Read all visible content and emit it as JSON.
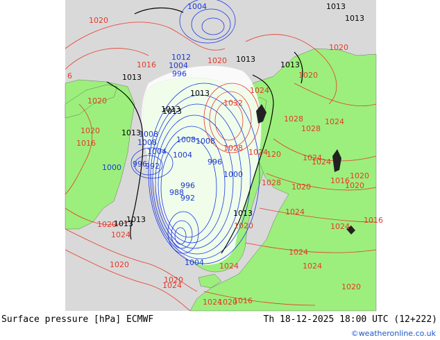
{
  "footer": {
    "title": "Surface pressure [hPa] ECMWF",
    "valid_time": "Th 18-12-2025 18:00 UTC (12+222)",
    "credit": "©weatheronline.co.uk"
  },
  "colors": {
    "ocean": "#d9d9d9",
    "land": "#9cef7c",
    "high_isobar": "#e8382a",
    "low_isobar": "#1838e0",
    "standard_isobar": "#000000"
  },
  "map": {
    "isobar_labels": [
      {
        "text": "1020",
        "color": "red"
      },
      {
        "text": "1004",
        "color": "blue"
      },
      {
        "text": "1013",
        "color": "black"
      },
      {
        "text": "1013",
        "color": "black"
      },
      {
        "text": "1020",
        "color": "red"
      },
      {
        "text": "1016",
        "color": "red"
      },
      {
        "text": "1012",
        "color": "blue"
      },
      {
        "text": "1004",
        "color": "blue"
      },
      {
        "text": "996",
        "color": "blue"
      },
      {
        "text": "1020",
        "color": "red"
      },
      {
        "text": "1013",
        "color": "black"
      },
      {
        "text": "1013",
        "color": "black"
      },
      {
        "text": "1020",
        "color": "red"
      },
      {
        "text": "1013",
        "color": "black"
      },
      {
        "text": "6",
        "color": "red"
      },
      {
        "text": "1013",
        "color": "black"
      },
      {
        "text": "1013",
        "color": "black"
      },
      {
        "text": "1024",
        "color": "red"
      },
      {
        "text": "1032",
        "color": "red"
      },
      {
        "text": "1013",
        "color": "black"
      },
      {
        "text": "1008",
        "color": "blue"
      },
      {
        "text": "1020",
        "color": "red"
      },
      {
        "text": "1013",
        "color": "black"
      },
      {
        "text": "1008",
        "color": "blue"
      },
      {
        "text": "1004",
        "color": "blue"
      },
      {
        "text": "1008",
        "color": "blue"
      },
      {
        "text": "1020",
        "color": "red"
      },
      {
        "text": "1028",
        "color": "red"
      },
      {
        "text": "1024",
        "color": "red"
      },
      {
        "text": "1028",
        "color": "red"
      },
      {
        "text": "1024",
        "color": "red"
      },
      {
        "text": "1016",
        "color": "red"
      },
      {
        "text": "1008",
        "color": "blue"
      },
      {
        "text": "1004",
        "color": "blue"
      },
      {
        "text": "1028",
        "color": "red"
      },
      {
        "text": "1024",
        "color": "red"
      },
      {
        "text": "120",
        "color": "red"
      },
      {
        "text": "1000",
        "color": "blue"
      },
      {
        "text": "996",
        "color": "blue"
      },
      {
        "text": "992",
        "color": "blue"
      },
      {
        "text": "996",
        "color": "blue"
      },
      {
        "text": "1000",
        "color": "blue"
      },
      {
        "text": "1024",
        "color": "red"
      },
      {
        "text": "1020",
        "color": "red"
      },
      {
        "text": "996",
        "color": "blue"
      },
      {
        "text": "988",
        "color": "blue"
      },
      {
        "text": "992",
        "color": "blue"
      },
      {
        "text": "1028",
        "color": "red"
      },
      {
        "text": "1016",
        "color": "red"
      },
      {
        "text": "1020",
        "color": "red"
      },
      {
        "text": "1020",
        "color": "red"
      },
      {
        "text": "1024",
        "color": "red"
      },
      {
        "text": "1013",
        "color": "black"
      },
      {
        "text": "1013",
        "color": "black"
      },
      {
        "text": "1020",
        "color": "red"
      },
      {
        "text": "1013",
        "color": "black"
      },
      {
        "text": "1024",
        "color": "red"
      },
      {
        "text": "1024",
        "color": "red"
      },
      {
        "text": "1020",
        "color": "red"
      },
      {
        "text": "1024",
        "color": "red"
      },
      {
        "text": "1024",
        "color": "red"
      },
      {
        "text": "1004",
        "color": "blue"
      },
      {
        "text": "1020",
        "color": "red"
      },
      {
        "text": "1020",
        "color": "red"
      },
      {
        "text": "1024",
        "color": "red"
      },
      {
        "text": "1024",
        "color": "red"
      },
      {
        "text": "1024",
        "color": "red"
      },
      {
        "text": "1020",
        "color": "red"
      },
      {
        "text": "1016",
        "color": "red"
      },
      {
        "text": "1020",
        "color": "red"
      },
      {
        "text": "1016",
        "color": "red"
      }
    ]
  }
}
